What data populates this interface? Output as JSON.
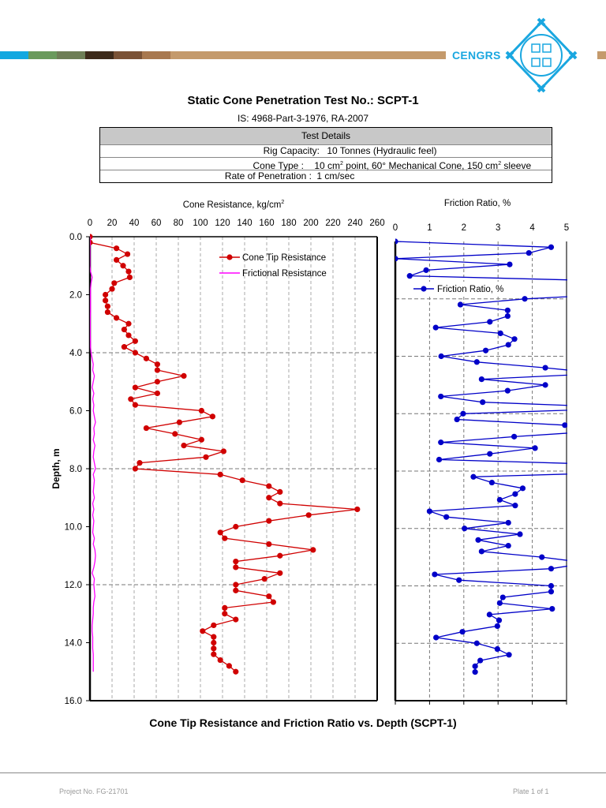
{
  "header": {
    "brand": "CENGRS",
    "stripe_colors": [
      "#12a8e0",
      "#6a9a5c",
      "#6e7e56",
      "#3d2a1a",
      "#7a5236",
      "#a8784f",
      "#c49a6c"
    ],
    "logo_color": "#1aa7e0"
  },
  "title": "Static Cone Penetration Test No.: SCPT-1",
  "subtitle": "IS: 4968-Part-3-1976, RA-2007",
  "test_details": {
    "heading": "Test Details",
    "rig_label": "Rig Capacity:",
    "rig_value": "10 Tonnes (Hydraulic feel)",
    "cone_label": "Cone Type :",
    "cone_value_a": "10 cm",
    "cone_sup_a": "2",
    "cone_value_b": " point, 60° Mechanical Cone, 150 cm",
    "cone_sup_b": "2",
    "cone_value_c": " sleeve",
    "rate_label": "Rate of Penetration :",
    "rate_value": "1 cm/sec"
  },
  "caption": "Cone Tip Resistance and Friction Ratio vs. Depth (SCPT-1)",
  "footer": {
    "project": "Project No. FG-21701",
    "plate": "Plate 1 of 1"
  },
  "chart_data": [
    {
      "type": "line",
      "title": "",
      "xlabel": "Cone Resistance, kg/cm",
      "xlabel_sup": "2",
      "ylabel": "Depth, m",
      "xlim": [
        0,
        260
      ],
      "ylim": [
        16,
        0
      ],
      "xticks": [
        0,
        20,
        40,
        60,
        80,
        100,
        120,
        140,
        160,
        180,
        200,
        220,
        240,
        260
      ],
      "yticks": [
        "0.0",
        "2.0",
        "4.0",
        "6.0",
        "8.0",
        "10.0",
        "12.0",
        "14.0",
        "16.0"
      ],
      "grid": true,
      "legend_position": "top-right",
      "depth": [
        0,
        0.2,
        0.4,
        0.6,
        0.8,
        1.0,
        1.2,
        1.4,
        1.6,
        1.8,
        2.0,
        2.2,
        2.4,
        2.6,
        2.8,
        3.0,
        3.2,
        3.4,
        3.6,
        3.8,
        4.0,
        4.2,
        4.4,
        4.6,
        4.8,
        5.0,
        5.2,
        5.4,
        5.6,
        5.8,
        6.0,
        6.2,
        6.4,
        6.6,
        6.8,
        7.0,
        7.2,
        7.4,
        7.6,
        7.8,
        8.0,
        8.2,
        8.4,
        8.6,
        8.8,
        9.0,
        9.2,
        9.4,
        9.6,
        9.8,
        10.0,
        10.2,
        10.4,
        10.6,
        10.8,
        11.0,
        11.2,
        11.4,
        11.6,
        11.8,
        12.0,
        12.2,
        12.4,
        12.6,
        12.8,
        13.0,
        13.2,
        13.4,
        13.6,
        13.8,
        14.0,
        14.2,
        14.4,
        14.6,
        14.8,
        15.0
      ],
      "series": [
        {
          "name": "Cone Tip Resistance",
          "color": "#d00000",
          "marker": "circle",
          "values": [
            0,
            0,
            24,
            34,
            24,
            30,
            35,
            36,
            22,
            20,
            14,
            14,
            16,
            16,
            24,
            35,
            31,
            35,
            41,
            31,
            41,
            51,
            61,
            61,
            85,
            61,
            41,
            61,
            37,
            41,
            101,
            111,
            81,
            51,
            77,
            101,
            85,
            121,
            105,
            45,
            41,
            118,
            138,
            162,
            172,
            162,
            172,
            242,
            198,
            162,
            132,
            118,
            122,
            162,
            202,
            172,
            132,
            132,
            172,
            158,
            132,
            132,
            162,
            166,
            122,
            122,
            132,
            112,
            102,
            112,
            112,
            112,
            112,
            118,
            126,
            132
          ]
        },
        {
          "name": "Frictional Resistance",
          "color": "#ff00ff",
          "marker": "none",
          "values": [
            0,
            0,
            0,
            0,
            0,
            0,
            0.5,
            2,
            1,
            0.5,
            0.5,
            0.5,
            0.5,
            0.5,
            0.3,
            0.3,
            0.3,
            0.3,
            0.5,
            0.5,
            1,
            2,
            3,
            2.5,
            4,
            3,
            2,
            3.5,
            2.5,
            3.5,
            3,
            4,
            5,
            3.5,
            4,
            3,
            4.5,
            3.5,
            3,
            4,
            5,
            3,
            4,
            3.5,
            3,
            4,
            2.5,
            3.5,
            2.5,
            3.5,
            3,
            2.5,
            4,
            3,
            4.5,
            5,
            4.5,
            3.5,
            2,
            4,
            3.5,
            4,
            4.5,
            3.5,
            3,
            3,
            2.5,
            2,
            2,
            2.5,
            2.5,
            2.5,
            3,
            3,
            3,
            3
          ]
        }
      ]
    },
    {
      "type": "line",
      "title": "Friction Ratio, %",
      "xlabel": "",
      "ylabel": "",
      "xlim": [
        0,
        5
      ],
      "ylim": [
        16,
        0
      ],
      "xticks": [
        0,
        1,
        2,
        3,
        4,
        5
      ],
      "grid": true,
      "legend_position": "top-left",
      "depth": [
        0,
        0.2,
        0.4,
        0.6,
        0.8,
        1.0,
        1.2,
        1.4,
        1.6,
        1.8,
        2.0,
        2.2,
        2.4,
        2.6,
        2.8,
        3.0,
        3.2,
        3.4,
        3.6,
        3.8,
        4.0,
        4.2,
        4.4,
        4.6,
        4.8,
        5.0,
        5.2,
        5.4,
        5.6,
        5.8,
        6.0,
        6.2,
        6.4,
        6.6,
        6.8,
        7.0,
        7.2,
        7.4,
        7.6,
        7.8,
        8.0,
        8.2,
        8.4,
        8.6,
        8.8,
        9.0,
        9.2,
        9.4,
        9.6,
        9.8,
        10.0,
        10.2,
        10.4,
        10.6,
        10.8,
        11.0,
        11.2,
        11.4,
        11.6,
        11.8,
        12.0,
        12.2,
        12.4,
        12.6,
        12.8,
        13.0,
        13.2,
        13.4,
        13.6,
        13.8,
        14.0,
        14.2,
        14.4,
        14.6,
        14.8,
        15.0
      ],
      "series": [
        {
          "name": "Friction Ratio, %",
          "color": "#0000c8",
          "marker": "circle",
          "values": [
            0,
            4.55,
            3.9,
            0,
            3.34,
            0.9,
            0.42,
            7,
            9,
            7,
            3.78,
            1.9,
            3.28,
            3.28,
            2.76,
            1.18,
            3.07,
            3.48,
            3.3,
            2.64,
            1.34,
            2.38,
            4.38,
            6,
            2.52,
            4.38,
            3.28,
            1.33,
            2.55,
            7,
            1.98,
            1.8,
            4.95,
            6,
            3.47,
            1.33,
            4.08,
            2.76,
            1.28,
            7,
            8,
            2.28,
            2.82,
            3.72,
            3.5,
            3.05,
            3.5,
            1.0,
            1.49,
            3.3,
            2.02,
            3.64,
            2.42,
            3.3,
            2.52,
            4.28,
            5.6,
            4.55,
            1.15,
            1.86,
            4.55,
            4.55,
            3.14,
            3.05,
            4.58,
            2.75,
            3.03,
            2.98,
            1.96,
            1.19,
            2.38,
            2.98,
            3.32,
            2.48,
            2.33,
            2.33
          ]
        }
      ]
    }
  ]
}
